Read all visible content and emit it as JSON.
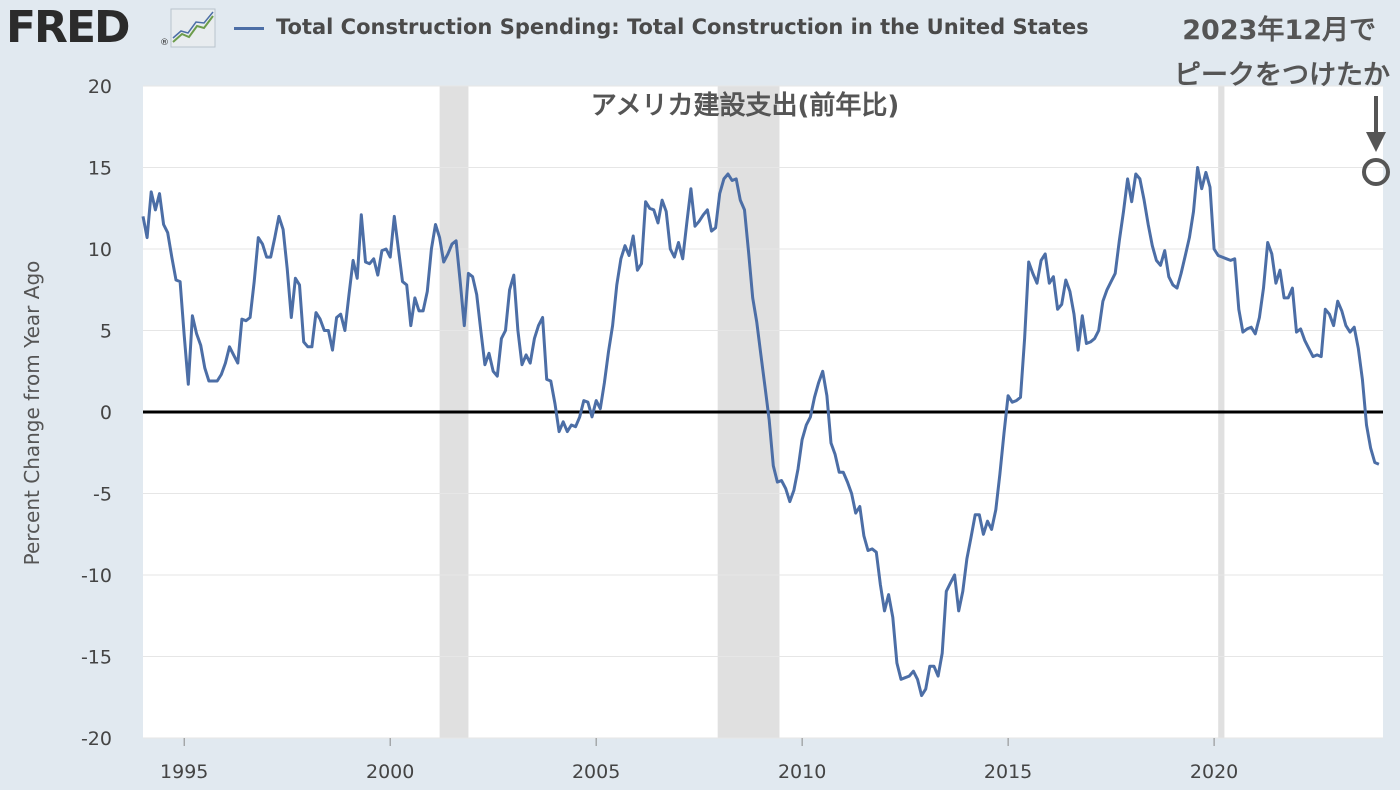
{
  "header": {
    "logo_text": "FRED",
    "logo_mark": "®",
    "logo_icon": "line-chart-icon",
    "legend_label": "Total Construction Spending: Total Construction in the United States"
  },
  "annotations": {
    "title": "アメリカ建設支出(前年比)",
    "peak_line1": "2023年12月で",
    "peak_line2": "ピークをつけたか",
    "peak_marker": "circle-marker-icon",
    "peak_arrow": "down-arrow-icon"
  },
  "colors": {
    "page_background": "#e1e9f0",
    "plot_background": "#ffffff",
    "series": "#4c6ea6",
    "recession": "#e0e0e0",
    "zero_line": "#000000",
    "grid": "#e6e6e6"
  },
  "chart_data": {
    "type": "line",
    "title": "",
    "xlabel": "",
    "ylabel": "Percent Change from Year Ago",
    "ylim": [
      -20,
      20
    ],
    "xlim": [
      1994.0,
      2024.1
    ],
    "yticks": [
      "20",
      "15",
      "10",
      "5",
      "0",
      "-5",
      "-10",
      "-15",
      "-20"
    ],
    "xticks": [
      "1995",
      "2000",
      "2005",
      "2010",
      "2015",
      "2020"
    ],
    "grid": true,
    "recessions": [
      [
        2001.2,
        2001.9
      ],
      [
        2007.95,
        2009.45
      ],
      [
        2020.1,
        2020.25
      ]
    ],
    "series": [
      {
        "name": "Total Construction Spending: Total Construction in the United States",
        "points": [
          [
            1994.0,
            12.0
          ],
          [
            1994.1,
            10.7
          ],
          [
            1994.2,
            13.5
          ],
          [
            1994.3,
            12.4
          ],
          [
            1994.4,
            13.4
          ],
          [
            1994.5,
            11.5
          ],
          [
            1994.6,
            11.0
          ],
          [
            1994.7,
            9.5
          ],
          [
            1994.8,
            8.1
          ],
          [
            1994.9,
            8.0
          ],
          [
            1995.0,
            4.7
          ],
          [
            1995.1,
            1.7
          ],
          [
            1995.2,
            5.9
          ],
          [
            1995.3,
            4.8
          ],
          [
            1995.4,
            4.1
          ],
          [
            1995.5,
            2.7
          ],
          [
            1995.6,
            1.9
          ],
          [
            1995.7,
            1.9
          ],
          [
            1995.8,
            1.9
          ],
          [
            1995.9,
            2.3
          ],
          [
            1996.0,
            3.0
          ],
          [
            1996.1,
            4.0
          ],
          [
            1996.2,
            3.5
          ],
          [
            1996.3,
            3.0
          ],
          [
            1996.4,
            5.7
          ],
          [
            1996.5,
            5.6
          ],
          [
            1996.6,
            5.8
          ],
          [
            1996.7,
            8.0
          ],
          [
            1996.8,
            10.7
          ],
          [
            1996.9,
            10.3
          ],
          [
            1997.0,
            9.5
          ],
          [
            1997.1,
            9.5
          ],
          [
            1997.2,
            10.7
          ],
          [
            1997.3,
            12.0
          ],
          [
            1997.4,
            11.2
          ],
          [
            1997.5,
            8.8
          ],
          [
            1997.6,
            5.8
          ],
          [
            1997.7,
            8.2
          ],
          [
            1997.8,
            7.8
          ],
          [
            1997.9,
            4.3
          ],
          [
            1998.0,
            4.0
          ],
          [
            1998.1,
            4.0
          ],
          [
            1998.2,
            6.1
          ],
          [
            1998.3,
            5.7
          ],
          [
            1998.4,
            5.0
          ],
          [
            1998.5,
            5.0
          ],
          [
            1998.6,
            3.8
          ],
          [
            1998.7,
            5.8
          ],
          [
            1998.8,
            6.0
          ],
          [
            1998.9,
            5.0
          ],
          [
            1999.0,
            7.2
          ],
          [
            1999.1,
            9.3
          ],
          [
            1999.2,
            8.2
          ],
          [
            1999.3,
            12.1
          ],
          [
            1999.4,
            9.2
          ],
          [
            1999.5,
            9.1
          ],
          [
            1999.6,
            9.4
          ],
          [
            1999.7,
            8.4
          ],
          [
            1999.8,
            9.9
          ],
          [
            1999.9,
            10.0
          ],
          [
            2000.0,
            9.5
          ],
          [
            2000.1,
            12.0
          ],
          [
            2000.2,
            10.0
          ],
          [
            2000.3,
            8.0
          ],
          [
            2000.4,
            7.8
          ],
          [
            2000.5,
            5.3
          ],
          [
            2000.6,
            7.0
          ],
          [
            2000.7,
            6.2
          ],
          [
            2000.8,
            6.2
          ],
          [
            2000.9,
            7.4
          ],
          [
            2001.0,
            10.0
          ],
          [
            2001.1,
            11.5
          ],
          [
            2001.2,
            10.7
          ],
          [
            2001.3,
            9.2
          ],
          [
            2001.4,
            9.7
          ],
          [
            2001.5,
            10.3
          ],
          [
            2001.6,
            10.5
          ],
          [
            2001.7,
            8.0
          ],
          [
            2001.8,
            5.3
          ],
          [
            2001.9,
            8.5
          ],
          [
            2002.0,
            8.3
          ],
          [
            2002.1,
            7.2
          ],
          [
            2002.2,
            5.0
          ],
          [
            2002.3,
            2.9
          ],
          [
            2002.4,
            3.6
          ],
          [
            2002.5,
            2.5
          ],
          [
            2002.6,
            2.2
          ],
          [
            2002.7,
            4.5
          ],
          [
            2002.8,
            5.0
          ],
          [
            2002.9,
            7.5
          ],
          [
            2003.0,
            8.4
          ],
          [
            2003.1,
            5.0
          ],
          [
            2003.2,
            2.9
          ],
          [
            2003.3,
            3.5
          ],
          [
            2003.4,
            3.0
          ],
          [
            2003.5,
            4.5
          ],
          [
            2003.6,
            5.3
          ],
          [
            2003.7,
            5.8
          ],
          [
            2003.8,
            2.0
          ],
          [
            2003.9,
            1.9
          ],
          [
            2004.0,
            0.5
          ],
          [
            2004.1,
            -1.2
          ],
          [
            2004.2,
            -0.6
          ],
          [
            2004.3,
            -1.2
          ],
          [
            2004.4,
            -0.8
          ],
          [
            2004.5,
            -0.9
          ],
          [
            2004.6,
            -0.3
          ],
          [
            2004.7,
            0.7
          ],
          [
            2004.8,
            0.6
          ],
          [
            2004.9,
            -0.3
          ],
          [
            2005.0,
            0.7
          ],
          [
            2005.1,
            0.2
          ],
          [
            2005.2,
            1.8
          ],
          [
            2005.3,
            3.7
          ],
          [
            2005.4,
            5.3
          ],
          [
            2005.5,
            7.8
          ],
          [
            2005.6,
            9.4
          ],
          [
            2005.7,
            10.2
          ],
          [
            2005.8,
            9.6
          ],
          [
            2005.9,
            10.8
          ],
          [
            2006.0,
            8.7
          ],
          [
            2006.1,
            9.1
          ],
          [
            2006.2,
            12.9
          ],
          [
            2006.3,
            12.5
          ],
          [
            2006.4,
            12.4
          ],
          [
            2006.5,
            11.6
          ],
          [
            2006.6,
            13.0
          ],
          [
            2006.7,
            12.3
          ],
          [
            2006.8,
            10.0
          ],
          [
            2006.9,
            9.5
          ],
          [
            2007.0,
            10.4
          ],
          [
            2007.1,
            9.4
          ],
          [
            2007.2,
            11.6
          ],
          [
            2007.3,
            13.7
          ],
          [
            2007.4,
            11.4
          ],
          [
            2007.5,
            11.7
          ],
          [
            2007.6,
            12.1
          ],
          [
            2007.7,
            12.4
          ],
          [
            2007.8,
            11.1
          ],
          [
            2007.9,
            11.3
          ],
          [
            2008.0,
            13.4
          ],
          [
            2008.1,
            14.3
          ],
          [
            2008.2,
            14.6
          ],
          [
            2008.3,
            14.2
          ],
          [
            2008.4,
            14.3
          ],
          [
            2008.5,
            13.0
          ],
          [
            2008.6,
            12.4
          ],
          [
            2008.7,
            9.8
          ],
          [
            2008.8,
            7.0
          ],
          [
            2008.9,
            5.5
          ],
          [
            2009.0,
            3.5
          ],
          [
            2009.1,
            1.5
          ],
          [
            2009.2,
            -0.5
          ],
          [
            2009.3,
            -3.3
          ],
          [
            2009.4,
            -4.3
          ],
          [
            2009.5,
            -4.2
          ],
          [
            2009.6,
            -4.7
          ],
          [
            2009.7,
            -5.5
          ],
          [
            2009.8,
            -4.8
          ],
          [
            2009.9,
            -3.5
          ],
          [
            2010.0,
            -1.7
          ],
          [
            2010.1,
            -0.8
          ],
          [
            2010.2,
            -0.3
          ],
          [
            2010.3,
            0.9
          ],
          [
            2010.4,
            1.8
          ],
          [
            2010.5,
            2.5
          ],
          [
            2010.6,
            1.0
          ],
          [
            2010.7,
            -1.9
          ],
          [
            2010.8,
            -2.6
          ],
          [
            2010.9,
            -3.7
          ],
          [
            2011.0,
            -3.7
          ],
          [
            2011.1,
            -4.3
          ],
          [
            2011.2,
            -5.0
          ],
          [
            2011.3,
            -6.2
          ],
          [
            2011.4,
            -5.8
          ],
          [
            2011.5,
            -7.6
          ],
          [
            2011.6,
            -8.5
          ],
          [
            2011.7,
            -8.4
          ],
          [
            2011.8,
            -8.6
          ],
          [
            2011.9,
            -10.6
          ],
          [
            2012.0,
            -12.2
          ],
          [
            2012.1,
            -11.2
          ],
          [
            2012.2,
            -12.6
          ],
          [
            2012.3,
            -15.4
          ],
          [
            2012.4,
            -16.4
          ],
          [
            2012.5,
            -16.3
          ],
          [
            2012.6,
            -16.2
          ],
          [
            2012.7,
            -15.9
          ],
          [
            2012.8,
            -16.4
          ],
          [
            2012.9,
            -17.4
          ],
          [
            2013.0,
            -17.0
          ],
          [
            2013.1,
            -15.6
          ],
          [
            2013.2,
            -15.6
          ],
          [
            2013.3,
            -16.2
          ],
          [
            2013.4,
            -14.8
          ],
          [
            2013.5,
            -11.0
          ],
          [
            2013.6,
            -10.5
          ],
          [
            2013.7,
            -10.0
          ],
          [
            2013.8,
            -12.2
          ],
          [
            2013.9,
            -11.0
          ],
          [
            2014.0,
            -9.0
          ],
          [
            2014.1,
            -7.7
          ],
          [
            2014.2,
            -6.3
          ],
          [
            2014.3,
            -6.3
          ],
          [
            2014.4,
            -7.5
          ],
          [
            2014.5,
            -6.7
          ],
          [
            2014.6,
            -7.2
          ],
          [
            2014.7,
            -6.0
          ],
          [
            2014.8,
            -3.8
          ],
          [
            2014.9,
            -1.3
          ],
          [
            2015.0,
            1.0
          ],
          [
            2015.1,
            0.6
          ],
          [
            2015.2,
            0.7
          ],
          [
            2015.3,
            0.9
          ],
          [
            2015.4,
            4.5
          ],
          [
            2015.5,
            9.2
          ],
          [
            2015.6,
            8.5
          ],
          [
            2015.7,
            7.9
          ],
          [
            2015.8,
            9.3
          ],
          [
            2015.9,
            9.7
          ],
          [
            2016.0,
            7.9
          ],
          [
            2016.1,
            8.3
          ],
          [
            2016.2,
            6.3
          ],
          [
            2016.3,
            6.6
          ],
          [
            2016.4,
            8.1
          ],
          [
            2016.5,
            7.4
          ],
          [
            2016.6,
            6.0
          ],
          [
            2016.7,
            3.8
          ],
          [
            2016.8,
            5.9
          ],
          [
            2016.9,
            4.2
          ],
          [
            2017.0,
            4.3
          ],
          [
            2017.1,
            4.5
          ],
          [
            2017.2,
            5.0
          ],
          [
            2017.3,
            6.8
          ],
          [
            2017.4,
            7.5
          ],
          [
            2017.5,
            8.0
          ],
          [
            2017.6,
            8.5
          ],
          [
            2017.7,
            10.5
          ],
          [
            2017.8,
            12.3
          ],
          [
            2017.9,
            14.3
          ],
          [
            2018.0,
            12.9
          ],
          [
            2018.1,
            14.6
          ],
          [
            2018.2,
            14.3
          ],
          [
            2018.3,
            13.0
          ],
          [
            2018.4,
            11.5
          ],
          [
            2018.5,
            10.2
          ],
          [
            2018.6,
            9.3
          ],
          [
            2018.7,
            9.0
          ],
          [
            2018.8,
            9.9
          ],
          [
            2018.9,
            8.3
          ],
          [
            2019.0,
            7.8
          ],
          [
            2019.1,
            7.6
          ],
          [
            2019.2,
            8.5
          ],
          [
            2019.3,
            9.6
          ],
          [
            2019.4,
            10.7
          ],
          [
            2019.5,
            12.3
          ],
          [
            2019.6,
            15.0
          ],
          [
            2019.7,
            13.7
          ],
          [
            2019.8,
            14.7
          ],
          [
            2019.9,
            13.8
          ],
          [
            2020.0,
            10.0
          ],
          [
            2020.1,
            9.6
          ],
          [
            2020.2,
            9.5
          ],
          [
            2020.3,
            9.4
          ],
          [
            2020.4,
            9.3
          ],
          [
            2020.5,
            9.4
          ],
          [
            2020.6,
            6.3
          ],
          [
            2020.7,
            4.9
          ],
          [
            2020.8,
            5.1
          ],
          [
            2020.9,
            5.2
          ],
          [
            2021.0,
            4.8
          ],
          [
            2021.1,
            5.8
          ],
          [
            2021.2,
            7.6
          ],
          [
            2021.3,
            10.4
          ],
          [
            2021.4,
            9.7
          ],
          [
            2021.5,
            7.9
          ],
          [
            2021.6,
            8.7
          ],
          [
            2021.7,
            7.0
          ],
          [
            2021.8,
            7.0
          ],
          [
            2021.9,
            7.6
          ],
          [
            2022.0,
            4.9
          ],
          [
            2022.1,
            5.1
          ],
          [
            2022.2,
            4.4
          ],
          [
            2022.3,
            3.9
          ],
          [
            2022.4,
            3.4
          ],
          [
            2022.5,
            3.5
          ],
          [
            2022.6,
            3.4
          ],
          [
            2022.7,
            6.3
          ],
          [
            2022.8,
            6.0
          ],
          [
            2022.9,
            5.3
          ],
          [
            2023.0,
            6.8
          ],
          [
            2023.1,
            6.2
          ],
          [
            2023.2,
            5.3
          ],
          [
            2023.3,
            4.9
          ],
          [
            2023.4,
            5.2
          ],
          [
            2023.5,
            3.9
          ],
          [
            2023.6,
            2.0
          ],
          [
            2023.7,
            -0.8
          ],
          [
            2023.8,
            -2.2
          ],
          [
            2023.9,
            -3.1
          ],
          [
            2024.0,
            -3.2
          ]
        ]
      }
    ]
  }
}
